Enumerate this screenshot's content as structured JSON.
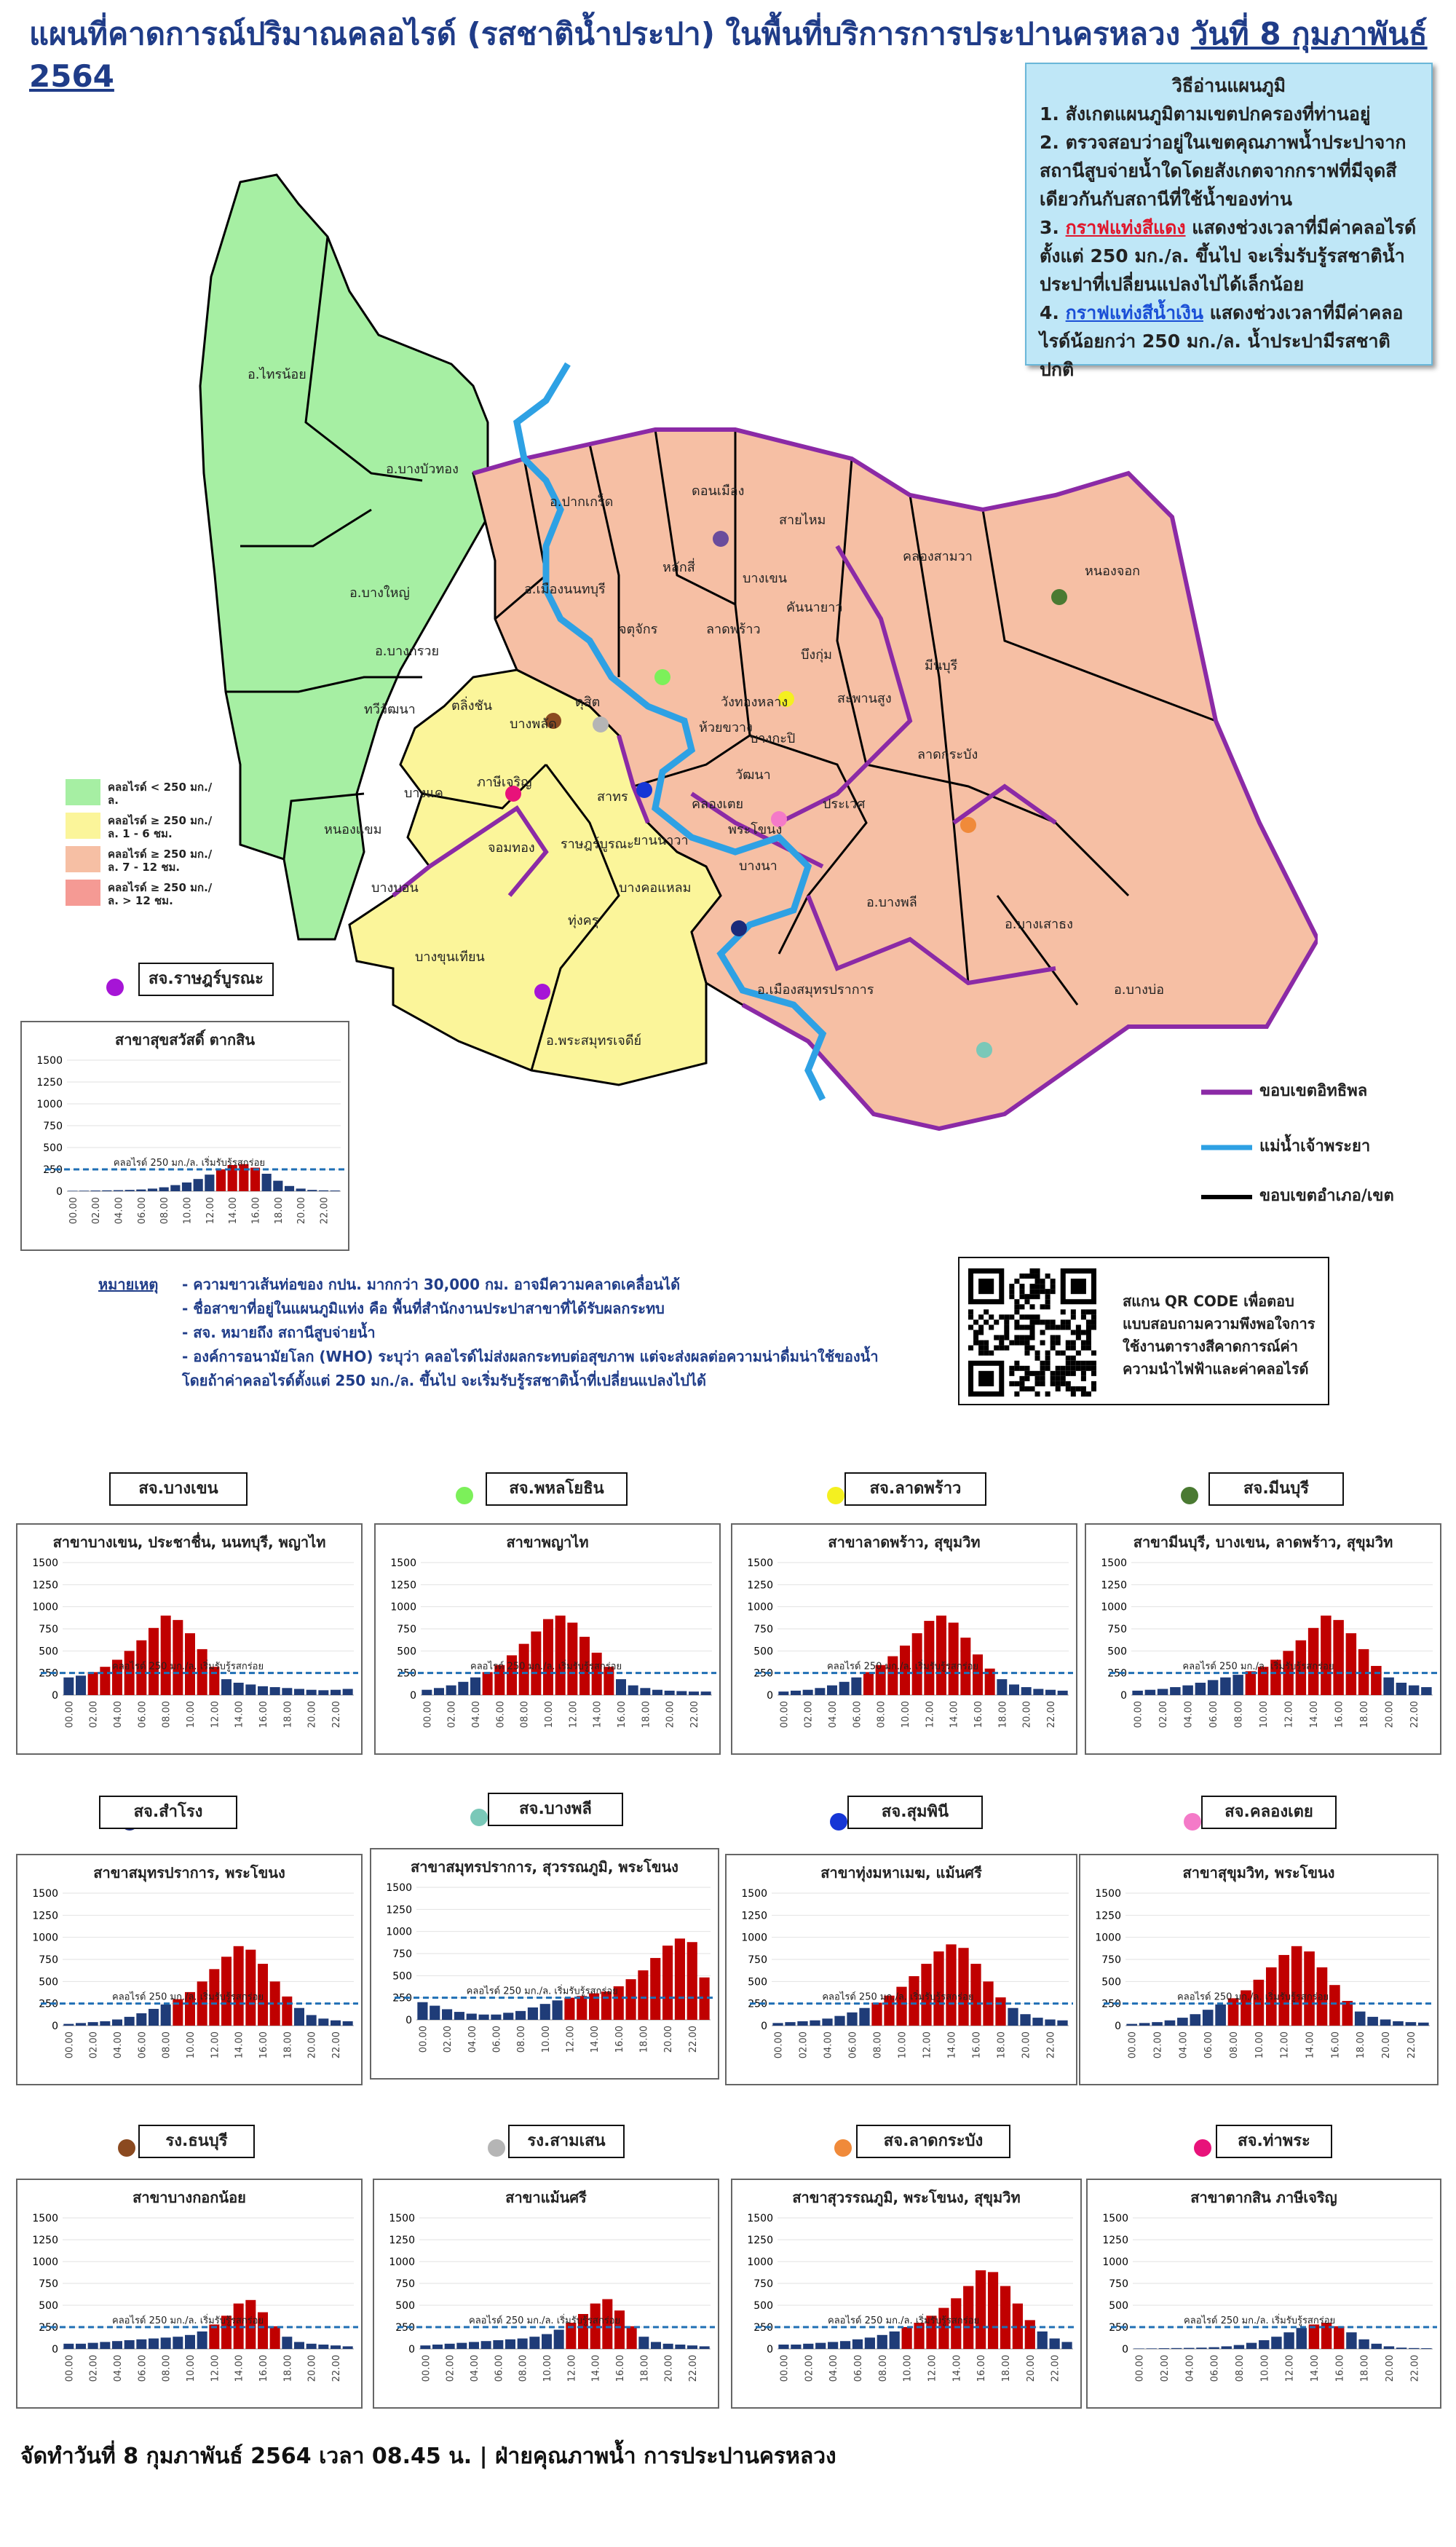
{
  "title": {
    "main": "แผนที่คาดการณ์ปริมาณคลอไรด์ (รสชาติน้ำประปา) ในพื้นที่บริการการประปานครหลวง",
    "date": "วันที่ 8 กุมภาพันธ์ 2564"
  },
  "guide": {
    "heading": "วิธีอ่านแผนภูมิ",
    "step1": "1. สังเกตแผนภูมิตามเขตปกครองที่ท่านอยู่",
    "step2": "2. ตรวจสอบว่าอยู่ในเขตคุณภาพน้ำประปาจากสถานีสูบจ่ายน้ำใดโดยสังเกตจากกราฟที่มีจุดสีเดียวกันกับสถานีที่ใช้น้ำของท่าน",
    "step3_prefix": "3.",
    "step3_red": "กราฟแท่งสีแดง",
    "step3_rest": "แสดงช่วงเวลาที่มีค่าคลอไรด์ตั้งแต่ 250 มก./ล. ขึ้นไป จะเริ่มรับรู้รสชาติน้ำประปาที่เปลี่ยนแปลงไปได้เล็กน้อย",
    "step4_prefix": "4.",
    "step4_blue": "กราฟแท่งสีน้ำเงิน",
    "step4_rest": "แสดงช่วงเวลาที่มีค่าคลอไรด์น้อยกว่า 250 มก./ล. น้ำประปามีรสชาติปกติ"
  },
  "colors": {
    "green": "#a6efa3",
    "yellow": "#fbf59a",
    "salmon": "#f6bfa4",
    "red_zone": "#f59a94",
    "purple": "#8b2aa6",
    "river": "#2ea1e4",
    "bar_red": "#c00000",
    "bar_blue": "#1f3c78",
    "threshold": "#1f6fb5"
  },
  "legend": {
    "items": [
      {
        "text": "คลอไรด์ < 250 มก./ล.",
        "color": "#a6efa3"
      },
      {
        "text": "คลอไรด์ ≥ 250 มก./ล. 1 - 6 ชม.",
        "color": "#fbf59a"
      },
      {
        "text": "คลอไรด์ ≥ 250 มก./ล. 7 - 12 ชม.",
        "color": "#f6bfa4"
      },
      {
        "text": "คลอไรด์ ≥ 250 มก./ล. > 12 ชม.",
        "color": "#f59a94"
      }
    ],
    "line_influence": "ขอบเขตอิทธิพล",
    "line_river": "แม่น้ำเจ้าพระยา",
    "line_district": "ขอบเขตอำเภอ/เขต"
  },
  "map_labels": [
    "อ.ไทรน้อย",
    "อ.บางบัวทอง",
    "อ.บางใหญ่",
    "อ.ปากเกร็ด",
    "อ.เมืองนนทบุรี",
    "อ.บางกรวย",
    "ดอนเมือง",
    "สายไหม",
    "หลักสี่",
    "บางเขน",
    "คลองสามวา",
    "หนองจอก",
    "จตุจักร",
    "ลาดพร้าว",
    "มีนบุรี",
    "คันนายาว",
    "บึงกุ่ม",
    "สะพานสูง",
    "ลาดกระบัง",
    "ทวีวัฒนา",
    "ตลิ่งชัน",
    "บางพลัด",
    "ดุสิต",
    "ภาษีเจริญ",
    "บางแค",
    "หนองแขม",
    "ประเวศ",
    "บางนา",
    "พระโขนง",
    "คลองเตย",
    "วัฒนา",
    "บางบอน",
    "จอมทอง",
    "ราษฎร์บูรณะ",
    "ทุ่งครุ",
    "บางขุนเทียน",
    "อ.พระสมุทรเจดีย์",
    "อ.เมืองสมุทรปราการ",
    "อ.บางพลี",
    "อ.บางเสาธง",
    "อ.บางบ่อ",
    "วังทองหลาง",
    "ห้วยขวาง",
    "บางกะปิ",
    "สาทร",
    "ยานนาวา",
    "บางคอแหลม"
  ],
  "top_station": {
    "label": "สจ.ราษฎร์บูรณะ",
    "dot_color": "#a615d6"
  },
  "axis": {
    "y_ticks": [
      "0",
      "250",
      "500",
      "750",
      "1000",
      "1250",
      "1500"
    ],
    "x_ticks": [
      "00.00",
      "02.00",
      "04.00",
      "06.00",
      "08.00",
      "10.00",
      "12.00",
      "14.00",
      "16.00",
      "18.00",
      "20.00",
      "22.00"
    ],
    "threshold_label": "คลอไรด์ 250 มก./ล. เริ่มรับรู้รสกร่อย"
  },
  "notes": {
    "heading": "หมายเหตุ",
    "lines": [
      "- ความขาวเส้นท่อของ กปน. มากกว่า 30,000 กม. อาจมีความคลาดเคลื่อนได้",
      "- ชื่อสาขาที่อยู่ในแผนภูมิแท่ง คือ พื้นที่สำนักงานประปาสาขาที่ได้รับผลกระทบ",
      "- สจ. หมายถึง สถานีสูบจ่ายน้ำ",
      "- องค์การอนามัยโลก (WHO) ระบุว่า คลอไรด์ไม่ส่งผลกระทบต่อสุขภาพ แต่จะส่งผลต่อความน่าดื่มน่าใช้ของน้ำ",
      "  โดยถ้าค่าคลอไรด์ตั้งแต่ 250 มก./ล. ขึ้นไป จะเริ่มรับรู้รสชาติน้ำที่เปลี่ยนแปลงไปได้"
    ]
  },
  "qr": {
    "text": "สแกน QR CODE เพื่อตอบแบบสอบถามความพึงพอใจการใช้งานตารางสีคาดการณ์ค่าความนำไฟฟ้าและค่าคลอไรด์"
  },
  "footer": "จัดทำวันที่ 8 กุมภาพันธ์ 2564 เวลา 08.45 น. | ฝ่ายคุณภาพน้ำ การประปานครหลวง",
  "chart_data": [
    {
      "type": "bar",
      "station": "สจ.ราษฎร์บูรณะ",
      "dot": "#a615d6",
      "title": "สาขาสุขสวัสดิ์ ตากสิน",
      "values": [
        5,
        6,
        8,
        10,
        12,
        15,
        20,
        30,
        45,
        70,
        100,
        140,
        190,
        250,
        300,
        310,
        270,
        200,
        120,
        60,
        30,
        15,
        10,
        8
      ],
      "ylim": [
        0,
        1500
      ],
      "threshold": 250
    },
    {
      "type": "bar",
      "station": "สจ.บางเขน",
      "dot": "#6a4c9c",
      "title": "สาขาบางเขน, ประชาชื่น, นนทบุรี, พญาไท",
      "values": [
        200,
        220,
        260,
        320,
        400,
        500,
        620,
        760,
        900,
        850,
        700,
        520,
        320,
        180,
        140,
        120,
        100,
        90,
        80,
        70,
        60,
        55,
        60,
        70
      ],
      "ylim": [
        0,
        1500
      ],
      "threshold": 250
    },
    {
      "type": "bar",
      "station": "สจ.พหลโยธิน",
      "dot": "#7cf05a",
      "title": "สาขาพญาไท",
      "values": [
        60,
        80,
        110,
        150,
        200,
        260,
        340,
        450,
        580,
        720,
        860,
        900,
        820,
        660,
        480,
        320,
        180,
        110,
        80,
        60,
        50,
        45,
        40,
        40
      ],
      "ylim": [
        0,
        1500
      ],
      "threshold": 250
    },
    {
      "type": "bar",
      "station": "สจ.ลาดพร้าว",
      "dot": "#f4f020",
      "title": "สาขาลาดพร้าว, สุขุมวิท",
      "values": [
        40,
        50,
        60,
        80,
        110,
        150,
        200,
        260,
        340,
        440,
        560,
        700,
        840,
        900,
        820,
        650,
        460,
        300,
        180,
        120,
        90,
        70,
        60,
        50
      ],
      "ylim": [
        0,
        1500
      ],
      "threshold": 250
    },
    {
      "type": "bar",
      "station": "สจ.มีนบุรี",
      "dot": "#4a7a32",
      "title": "สาขามีนบุรี, บางเขน, ลาดพร้าว, สุขุมวิท",
      "values": [
        50,
        60,
        70,
        90,
        110,
        140,
        170,
        200,
        230,
        270,
        320,
        400,
        500,
        620,
        760,
        900,
        850,
        700,
        520,
        330,
        200,
        140,
        110,
        90
      ],
      "ylim": [
        0,
        1500
      ],
      "threshold": 250
    },
    {
      "type": "bar",
      "station": "สจ.สำโรง",
      "dot": "#1a2a7a",
      "title": "สาขาสมุทรปราการ, พระโขนง",
      "values": [
        20,
        30,
        40,
        50,
        70,
        100,
        140,
        190,
        240,
        300,
        380,
        500,
        640,
        780,
        900,
        860,
        700,
        500,
        330,
        200,
        120,
        80,
        60,
        50
      ],
      "ylim": [
        0,
        1500
      ],
      "threshold": 250
    },
    {
      "type": "bar",
      "station": "สจ.บางพลี",
      "dot": "#7ac8b8",
      "title": "สาขาสมุทรปราการ, สุวรรณภูมิ, พระโขนง",
      "values": [
        200,
        160,
        120,
        90,
        70,
        60,
        60,
        80,
        100,
        140,
        180,
        220,
        250,
        270,
        300,
        320,
        380,
        460,
        560,
        700,
        840,
        920,
        880,
        480
      ],
      "ylim": [
        0,
        1500
      ],
      "threshold": 250
    },
    {
      "type": "bar",
      "station": "สจ.สุมพินี",
      "dot": "#1636d6",
      "title": "สาขาทุ่งมหาเมฆ, แม้นศรี",
      "values": [
        30,
        40,
        50,
        60,
        80,
        110,
        150,
        200,
        260,
        340,
        440,
        560,
        700,
        840,
        920,
        880,
        700,
        500,
        320,
        200,
        130,
        90,
        70,
        60
      ],
      "ylim": [
        0,
        1500
      ],
      "threshold": 250
    },
    {
      "type": "bar",
      "station": "สจ.คลองเตย",
      "dot": "#f47ac8",
      "title": "สาขาสุขุมวิท, พระโขนง",
      "values": [
        20,
        30,
        40,
        60,
        90,
        130,
        180,
        240,
        310,
        400,
        520,
        660,
        800,
        900,
        840,
        660,
        460,
        280,
        160,
        100,
        70,
        50,
        40,
        35
      ],
      "ylim": [
        0,
        1500
      ],
      "threshold": 250
    },
    {
      "type": "bar",
      "station": "รง.ธนบุรี",
      "dot": "#8b4a20",
      "title": "สาขาบางกอกน้อย",
      "values": [
        60,
        60,
        70,
        80,
        90,
        100,
        110,
        120,
        130,
        140,
        160,
        200,
        280,
        380,
        520,
        560,
        420,
        260,
        140,
        80,
        60,
        50,
        40,
        30
      ],
      "ylim": [
        0,
        1500
      ],
      "threshold": 250
    },
    {
      "type": "bar",
      "station": "รง.สามเสน",
      "dot": "#b5b5b5",
      "title": "สาขาแม้นศรี",
      "values": [
        40,
        50,
        60,
        70,
        80,
        90,
        100,
        110,
        120,
        140,
        170,
        220,
        300,
        400,
        520,
        570,
        440,
        260,
        140,
        80,
        60,
        50,
        40,
        30
      ],
      "ylim": [
        0,
        1500
      ],
      "threshold": 250
    },
    {
      "type": "bar",
      "station": "สจ.ลาดกระบัง",
      "dot": "#f08a3a",
      "title": "สาขาสุวรรณภูมิ, พระโขนง, สุขุมวิท",
      "values": [
        50,
        50,
        60,
        70,
        80,
        90,
        110,
        130,
        160,
        200,
        250,
        300,
        380,
        470,
        580,
        720,
        900,
        880,
        720,
        520,
        330,
        200,
        120,
        80
      ],
      "ylim": [
        0,
        1500
      ],
      "threshold": 250
    },
    {
      "type": "bar",
      "station": "สจ.ท่าพระ",
      "dot": "#e8127a",
      "title": "สาขาตากสิน ภาษีเจริญ",
      "values": [
        5,
        6,
        8,
        10,
        12,
        15,
        20,
        30,
        45,
        70,
        100,
        140,
        190,
        240,
        280,
        300,
        260,
        190,
        110,
        60,
        30,
        15,
        10,
        8
      ],
      "ylim": [
        0,
        1500
      ],
      "threshold": 250
    }
  ]
}
